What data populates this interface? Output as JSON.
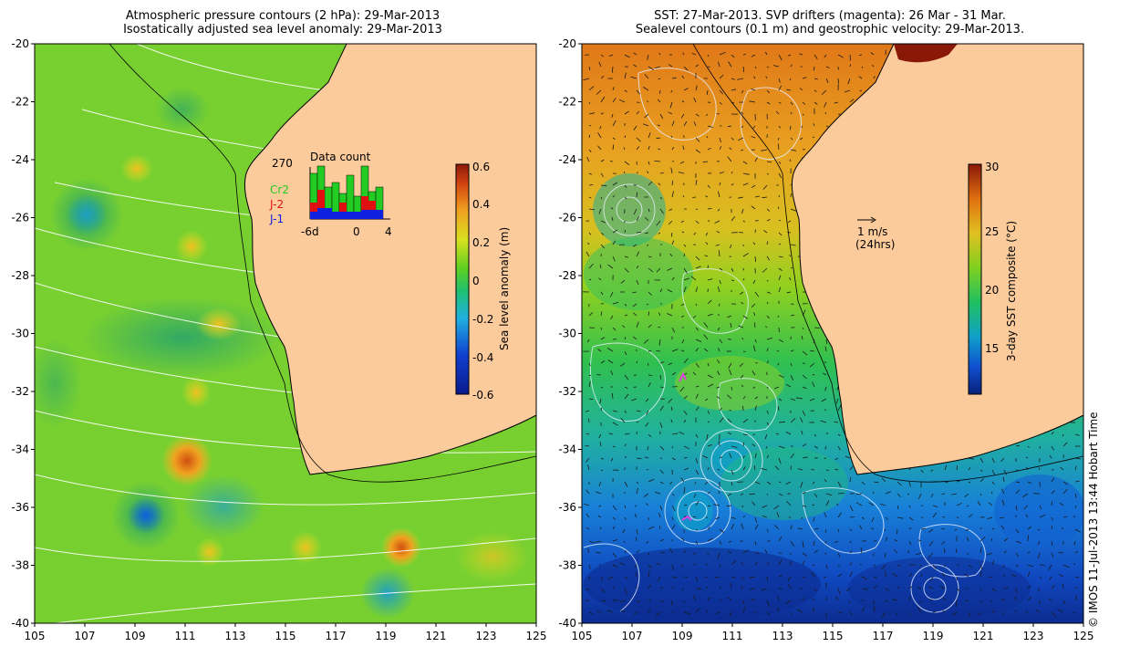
{
  "left_panel": {
    "title_line1": "Atmospheric pressure contours (2 hPa): 29-Mar-2013",
    "title_line2": "Isostatically adjusted sea level anomaly: 29-Mar-2013",
    "colorbar_label": "Sea level anomaly (m)",
    "colorbar_ticks": [
      "0.6",
      "0.4",
      "0.2",
      "0",
      "-0.2",
      "-0.4",
      "-0.6"
    ],
    "inset": {
      "title": "Data count",
      "max_label": "270",
      "legend": [
        {
          "label": "Cr2",
          "color": "#22cc22"
        },
        {
          "label": "J-2",
          "color": "#e01010"
        },
        {
          "label": "J-1",
          "color": "#1020e0"
        }
      ],
      "x_labels": [
        "-6d",
        "0",
        "4"
      ]
    }
  },
  "right_panel": {
    "title_line1": "SST: 27-Mar-2013. SVP drifters (magenta): 26 Mar - 31 Mar.",
    "title_line2": "Sealevel contours (0.1 m) and geostrophic velocity: 29-Mar-2013.",
    "colorbar_label": "3-day SST composite (°C)",
    "colorbar_ticks": [
      "30",
      "25",
      "20",
      "15"
    ],
    "arrow_label": "1 m/s",
    "arrow_sublabel": "(24hrs)"
  },
  "axes": {
    "lat_labels": [
      "-20",
      "-22",
      "-24",
      "-26",
      "-28",
      "-30",
      "-32",
      "-34",
      "-36",
      "-38",
      "-40"
    ],
    "lon_labels": [
      "105",
      "107",
      "109",
      "111",
      "113",
      "115",
      "117",
      "119",
      "121",
      "123",
      "125"
    ]
  },
  "credit": "© IMOS 11-Jul-2013 13:44 Hobart Time",
  "colors": {
    "land": "#fccb9c",
    "coast": "#000000"
  }
}
